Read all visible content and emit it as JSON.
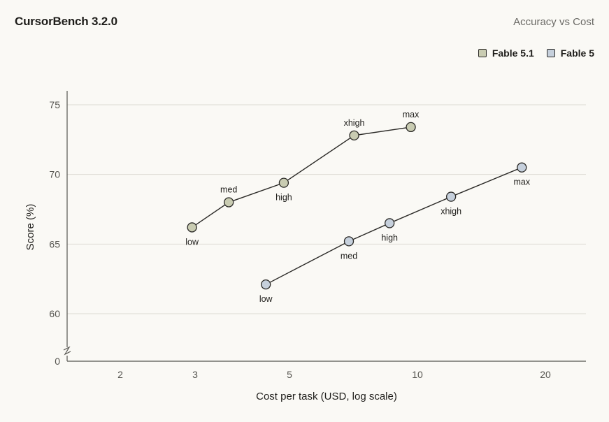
{
  "header": {
    "title": "CursorBench 3.2.0",
    "subtitle": "Accuracy vs Cost"
  },
  "colors": {
    "fable51": "#c9ccb2",
    "fable5": "#c6d0dc",
    "line": "#2b2a27",
    "grid": "#dcdad3",
    "background": "#faf9f5"
  },
  "chart_data": {
    "type": "scatter",
    "xlabel": "Cost per task (USD, log scale)",
    "ylabel": "Score (%)",
    "x_scale": "log",
    "xlim": [
      1.5,
      26
    ],
    "ylim": [
      58,
      76
    ],
    "y_axis_break": true,
    "x_ticks": [
      2,
      3,
      5,
      10,
      20
    ],
    "y_ticks": [
      0,
      60,
      65,
      70,
      75
    ],
    "grid": "horizontal",
    "legend_position": "top-right",
    "series": [
      {
        "name": "Fable 5.1",
        "color": "#c9ccb2",
        "points": [
          {
            "x": 2.95,
            "y": 66.2,
            "label": "low"
          },
          {
            "x": 3.6,
            "y": 68.0,
            "label": "med"
          },
          {
            "x": 4.85,
            "y": 69.4,
            "label": "high"
          },
          {
            "x": 7.1,
            "y": 72.8,
            "label": "xhigh"
          },
          {
            "x": 9.65,
            "y": 73.4,
            "label": "max"
          }
        ]
      },
      {
        "name": "Fable 5",
        "color": "#c6d0dc",
        "points": [
          {
            "x": 4.4,
            "y": 62.1,
            "label": "low"
          },
          {
            "x": 6.9,
            "y": 65.2,
            "label": "med"
          },
          {
            "x": 8.6,
            "y": 66.5,
            "label": "high"
          },
          {
            "x": 12.0,
            "y": 68.4,
            "label": "xhigh"
          },
          {
            "x": 17.6,
            "y": 70.5,
            "label": "max"
          }
        ]
      }
    ]
  }
}
